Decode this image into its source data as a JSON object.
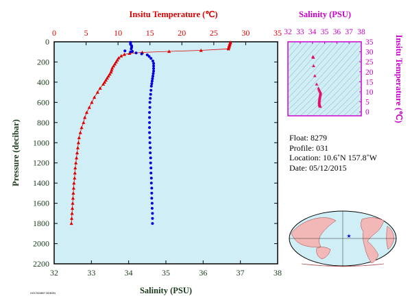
{
  "colors": {
    "temperature": "#dd0000",
    "salinity": "#0000dd",
    "salinity_axis": "#cc00cc",
    "plot_bg": "#cfeef6",
    "axis_text": "#2a4a2a",
    "ts_points": "#e0106a"
  },
  "chart_data": [
    {
      "type": "scatter",
      "id": "main_profile",
      "xlabel": "Salinity (PSU)",
      "x2label": "Insitu Temperature (℃)",
      "ylabel": "Pressure (decibar)",
      "xlim": [
        32,
        38
      ],
      "x2lim": [
        0,
        35
      ],
      "ylim": [
        2200,
        0
      ],
      "xticks": [
        "32",
        "33",
        "34",
        "35",
        "36",
        "37",
        "38"
      ],
      "x2ticks": [
        "0",
        "5",
        "10",
        "15",
        "20",
        "25",
        "30",
        "35"
      ],
      "yticks": [
        "0",
        "200",
        "400",
        "600",
        "800",
        "1000",
        "1200",
        "1400",
        "1600",
        "1800",
        "2000",
        "2200"
      ],
      "series": [
        {
          "marker": "triangle",
          "axis": "temperature",
          "points": [
            [
              27.6,
              5
            ],
            [
              27.6,
              10
            ],
            [
              27.5,
              20
            ],
            [
              27.5,
              30
            ],
            [
              27.4,
              40
            ],
            [
              27.4,
              50
            ],
            [
              27.3,
              60
            ],
            [
              27.3,
              70
            ],
            [
              23.0,
              85
            ],
            [
              18.0,
              95
            ],
            [
              13.8,
              105
            ],
            [
              11.8,
              115
            ],
            [
              11.0,
              125
            ],
            [
              10.5,
              140
            ],
            [
              10.1,
              160
            ],
            [
              9.9,
              180
            ],
            [
              9.7,
              200
            ],
            [
              9.5,
              220
            ],
            [
              9.3,
              240
            ],
            [
              9.1,
              260
            ],
            [
              9.0,
              280
            ],
            [
              8.9,
              300
            ],
            [
              8.7,
              320
            ],
            [
              8.5,
              340
            ],
            [
              8.3,
              360
            ],
            [
              8.1,
              380
            ],
            [
              7.9,
              400
            ],
            [
              7.7,
              420
            ],
            [
              7.2,
              460
            ],
            [
              6.8,
              500
            ],
            [
              6.3,
              550
            ],
            [
              5.9,
              600
            ],
            [
              5.5,
              650
            ],
            [
              5.1,
              700
            ],
            [
              4.8,
              750
            ],
            [
              4.6,
              800
            ],
            [
              4.3,
              850
            ],
            [
              4.1,
              900
            ],
            [
              3.9,
              950
            ],
            [
              3.8,
              1000
            ],
            [
              3.7,
              1050
            ],
            [
              3.6,
              1100
            ],
            [
              3.5,
              1150
            ],
            [
              3.4,
              1200
            ],
            [
              3.3,
              1250
            ],
            [
              3.25,
              1300
            ],
            [
              3.2,
              1350
            ],
            [
              3.1,
              1400
            ],
            [
              3.05,
              1450
            ],
            [
              3.0,
              1500
            ],
            [
              2.95,
              1550
            ],
            [
              2.9,
              1600
            ],
            [
              2.85,
              1650
            ],
            [
              2.8,
              1700
            ],
            [
              2.75,
              1750
            ],
            [
              2.7,
              1800
            ]
          ]
        },
        {
          "marker": "circle",
          "axis": "salinity",
          "points": [
            [
              34.05,
              5
            ],
            [
              34.05,
              15
            ],
            [
              34.05,
              25
            ],
            [
              34.08,
              40
            ],
            [
              34.08,
              55
            ],
            [
              34.07,
              70
            ],
            [
              33.9,
              90
            ],
            [
              34.1,
              95
            ],
            [
              34.05,
              100
            ],
            [
              34.2,
              110
            ],
            [
              34.35,
              120
            ],
            [
              34.5,
              130
            ],
            [
              34.55,
              145
            ],
            [
              34.6,
              165
            ],
            [
              34.65,
              190
            ],
            [
              34.67,
              215
            ],
            [
              34.67,
              240
            ],
            [
              34.67,
              265
            ],
            [
              34.67,
              290
            ],
            [
              34.66,
              315
            ],
            [
              34.65,
              340
            ],
            [
              34.64,
              365
            ],
            [
              34.63,
              390
            ],
            [
              34.62,
              415
            ],
            [
              34.61,
              440
            ],
            [
              34.6,
              480
            ],
            [
              34.59,
              520
            ],
            [
              34.58,
              560
            ],
            [
              34.57,
              600
            ],
            [
              34.57,
              650
            ],
            [
              34.56,
              700
            ],
            [
              34.56,
              750
            ],
            [
              34.56,
              800
            ],
            [
              34.56,
              850
            ],
            [
              34.56,
              900
            ],
            [
              34.57,
              950
            ],
            [
              34.57,
              1000
            ],
            [
              34.58,
              1050
            ],
            [
              34.58,
              1100
            ],
            [
              34.59,
              1150
            ],
            [
              34.59,
              1200
            ],
            [
              34.6,
              1250
            ],
            [
              34.6,
              1300
            ],
            [
              34.61,
              1350
            ],
            [
              34.61,
              1400
            ],
            [
              34.62,
              1450
            ],
            [
              34.62,
              1500
            ],
            [
              34.62,
              1550
            ],
            [
              34.63,
              1600
            ],
            [
              34.63,
              1650
            ],
            [
              34.64,
              1700
            ],
            [
              34.64,
              1750
            ],
            [
              34.64,
              1800
            ]
          ]
        }
      ]
    },
    {
      "type": "scatter",
      "id": "ts_diagram",
      "xlabel": "Salinity (PSU)",
      "ylabel": "Insitu Temperature (℃)",
      "xlim": [
        32,
        38
      ],
      "ylim": [
        -2,
        35
      ],
      "xticks": [
        "32",
        "33",
        "34",
        "35",
        "36",
        "37",
        "38"
      ],
      "yticks": [
        "0",
        "5",
        "10",
        "15",
        "20",
        "25",
        "30",
        "35"
      ],
      "points": [
        [
          34.05,
          27.6
        ],
        [
          34.05,
          27.4
        ],
        [
          34.08,
          27.2
        ],
        [
          34.1,
          23.0
        ],
        [
          34.2,
          18.0
        ],
        [
          34.35,
          13.8
        ],
        [
          34.5,
          11.8
        ],
        [
          34.55,
          11.0
        ],
        [
          34.6,
          10.5
        ],
        [
          34.65,
          10.0
        ],
        [
          34.67,
          9.5
        ],
        [
          34.66,
          9.0
        ],
        [
          34.65,
          8.5
        ],
        [
          34.63,
          8.0
        ],
        [
          34.61,
          7.5
        ],
        [
          34.6,
          7.0
        ],
        [
          34.59,
          6.5
        ],
        [
          34.58,
          6.0
        ],
        [
          34.57,
          5.5
        ],
        [
          34.56,
          5.0
        ],
        [
          34.56,
          4.5
        ],
        [
          34.57,
          4.0
        ],
        [
          34.58,
          3.7
        ],
        [
          34.59,
          3.4
        ],
        [
          34.61,
          3.2
        ],
        [
          34.62,
          3.0
        ],
        [
          34.63,
          2.9
        ],
        [
          34.64,
          2.8
        ],
        [
          34.64,
          2.7
        ]
      ]
    }
  ],
  "info": {
    "float": "Float:  8279",
    "profile": "Profile:  031",
    "location": "Location:  10.6˚N  157.8˚W",
    "date": "Date:  05/12/2015"
  },
  "footer_code": "HGCSDBBT BDBSN"
}
